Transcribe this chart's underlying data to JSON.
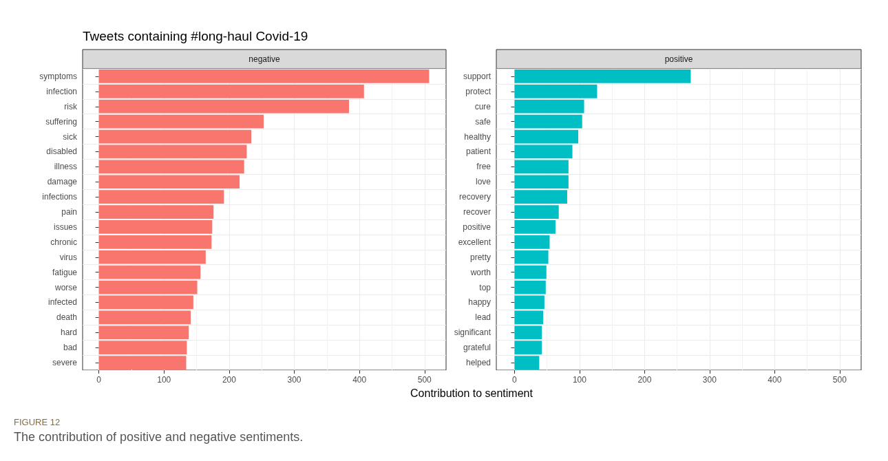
{
  "chart_data": [
    {
      "type": "bar",
      "orientation": "horizontal",
      "title": "Tweets containing #long-haul Covid-19",
      "subtitle": "negative",
      "xlabel": "Contribution to sentiment",
      "annotations": [
        "FIGURE 12",
        "The contribution of positive and negative sentiments."
      ],
      "categories": [
        "symptoms",
        "infection",
        "risk",
        "suffering",
        "sick",
        "disabled",
        "illness",
        "damage",
        "infections",
        "pain",
        "issues",
        "chronic",
        "virus",
        "fatigue",
        "worse",
        "infected",
        "death",
        "hard",
        "bad",
        "severe"
      ],
      "series": [
        {
          "color": "#f8766d",
          "values": [
            507,
            407,
            384,
            253,
            234,
            227,
            223,
            216,
            192,
            176,
            174,
            173,
            164,
            156,
            151,
            145,
            141,
            138,
            135,
            134
          ]
        }
      ],
      "xlim": [
        -25,
        533
      ],
      "xticks": [
        0,
        100,
        200,
        300,
        400,
        500
      ],
      "grid": true
    },
    {
      "type": "bar",
      "orientation": "horizontal",
      "subtitle": "positive",
      "categories": [
        "support",
        "protect",
        "cure",
        "safe",
        "healthy",
        "patient",
        "free",
        "love",
        "recovery",
        "recover",
        "positive",
        "excellent",
        "pretty",
        "worth",
        "top",
        "happy",
        "lead",
        "significant",
        "grateful",
        "helped"
      ],
      "series": [
        {
          "color": "#00bfc4",
          "values": [
            271,
            127,
            107,
            104,
            98,
            89,
            83,
            83,
            81,
            68,
            63,
            54,
            52,
            49,
            48,
            46,
            44,
            42,
            42,
            38
          ]
        }
      ],
      "xlim": [
        -28,
        533
      ],
      "xticks": [
        0,
        100,
        200,
        300,
        400,
        500
      ],
      "grid": true
    }
  ]
}
